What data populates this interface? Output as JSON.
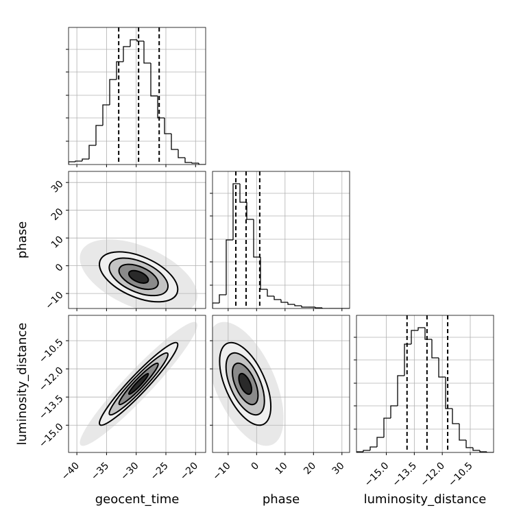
{
  "chart_data": {
    "type": "corner",
    "grid": true,
    "hist_ylim": [
      0,
      200
    ],
    "hist_yticks": [
      34,
      68,
      101,
      135,
      168
    ],
    "hist_color": "#000000",
    "quantile_color": "#000000",
    "contour_levels": [
      0.5,
      1,
      1.5,
      2
    ],
    "contour_fills": [
      "#2a2a2a",
      "#8a8a8a",
      "#c4c4c4",
      "#efefef"
    ],
    "parameters": [
      {
        "label": "geocent_time",
        "xlim": [
          -41.4,
          -18.3
        ],
        "ylim": [
          -41.4,
          -18.3
        ],
        "ticks": [
          {
            "value": -40,
            "label": "−40"
          },
          {
            "value": -35,
            "label": "−35"
          },
          {
            "value": -30,
            "label": "−30"
          },
          {
            "value": -25,
            "label": "−25"
          },
          {
            "value": -20,
            "label": "−20"
          }
        ],
        "quantiles": [
          -32.95,
          -29.6,
          -26.13
        ],
        "mean": -29.6,
        "sd": 3.3,
        "bins": [
          -41.4,
          -40.245,
          -39.09,
          -37.935,
          -36.78,
          -35.625,
          -34.47,
          -33.315,
          -32.16,
          -31.005,
          -29.85,
          -28.695,
          -27.54,
          -26.385,
          -25.23,
          -24.075,
          -22.92,
          -21.765,
          -20.61,
          -19.455,
          -18.3
        ],
        "counts": [
          4,
          5,
          8,
          28,
          57,
          87,
          124,
          150,
          172,
          182,
          180,
          148,
          100,
          68,
          45,
          22,
          10,
          3,
          2,
          0
        ]
      },
      {
        "label": "phase",
        "xlim": [
          -15.5,
          32.7
        ],
        "ylim": [
          -15.4,
          34
        ],
        "ticks": [
          {
            "value": -10,
            "label": "−10"
          },
          0,
          10,
          20,
          30
        ],
        "quantiles": [
          -7.3,
          -3.7,
          1.1
        ],
        "mean": -4,
        "sd": 4.5,
        "bins": [
          -15.5,
          -13.09,
          -10.68,
          -8.27,
          -5.86,
          -3.45,
          -1.04,
          1.37,
          3.78,
          6.19,
          8.6,
          11.01,
          13.42,
          15.83,
          18.24,
          20.65,
          23.06,
          25.47,
          27.88,
          30.29,
          32.7
        ],
        "counts": [
          8,
          20,
          100,
          182,
          155,
          130,
          75,
          28,
          18,
          13,
          9,
          6,
          4,
          2,
          2,
          1,
          0,
          0,
          0,
          0
        ]
      },
      {
        "label": "luminosity_distance",
        "xlim": [
          -16.6,
          -9.25
        ],
        "ylim": [
          -16.45,
          -9.15
        ],
        "ticks": [
          {
            "value": -15.0,
            "label": "−15.0"
          },
          {
            "value": -13.5,
            "label": "−13.5"
          },
          {
            "value": -12.0,
            "label": "−12.0"
          },
          {
            "value": -10.5,
            "label": "−10.5"
          }
        ],
        "quantiles": [
          -13.89,
          -12.82,
          -11.71
        ],
        "mean": -12.8,
        "sd": 1.1,
        "bins": [
          -16.6,
          -16.2325,
          -15.865,
          -15.4975,
          -15.13,
          -14.7625,
          -14.395,
          -14.0275,
          -13.66,
          -13.2925,
          -12.925,
          -12.5575,
          -12.19,
          -11.8225,
          -11.455,
          -11.0875,
          -10.72,
          -10.3525,
          -9.985,
          -9.6175,
          -9.25
        ],
        "counts": [
          1,
          3,
          8,
          22,
          50,
          68,
          112,
          158,
          178,
          182,
          165,
          138,
          110,
          64,
          42,
          18,
          7,
          3,
          1,
          0
        ]
      }
    ],
    "pairs": [
      {
        "x": 0,
        "y": 1,
        "rho": -0.5
      },
      {
        "x": 0,
        "y": 2,
        "rho": 0.95
      },
      {
        "x": 1,
        "y": 2,
        "rho": -0.55
      }
    ]
  }
}
